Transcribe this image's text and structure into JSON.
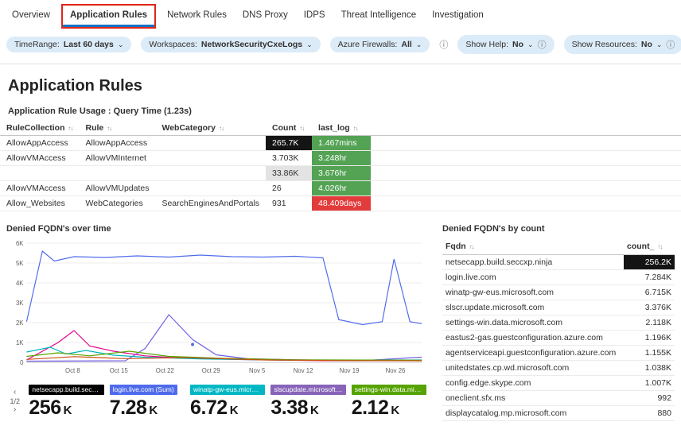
{
  "status_colors": {
    "green": "#54a254",
    "red": "#e23b3b",
    "dark": "#141414",
    "gray_chip": "#e3e3e3",
    "accent": "#1373c4",
    "annotation": "#e0261c"
  },
  "tabs": [
    {
      "label": "Overview",
      "selected": false
    },
    {
      "label": "Application Rules",
      "selected": true
    },
    {
      "label": "Network Rules",
      "selected": false
    },
    {
      "label": "DNS Proxy",
      "selected": false
    },
    {
      "label": "IDPS",
      "selected": false
    },
    {
      "label": "Threat Intelligence",
      "selected": false
    },
    {
      "label": "Investigation",
      "selected": false
    }
  ],
  "filters": {
    "time_range_label": "TimeRange:",
    "time_range_value": "Last 60 days",
    "workspaces_label": "Workspaces:",
    "workspaces_value": "NetworkSecurityCxeLogs",
    "azure_firewalls_label": "Azure Firewalls:",
    "azure_firewalls_value": "All",
    "show_help_label": "Show Help:",
    "show_help_value": "No",
    "show_resources_label": "Show Resources:",
    "show_resources_value": "No"
  },
  "page_title": "Application Rules",
  "usage": {
    "heading": "Application Rule Usage : Query Time (1.23s)",
    "columns": [
      "RuleCollection",
      "Rule",
      "WebCategory",
      "Count",
      "last_log"
    ],
    "rows": [
      {
        "rule_collection": "AllowAppAccess",
        "rule": "AllowAppAccess",
        "web_category": "",
        "count": "265.7K",
        "count_style": "dark",
        "last_log": "1.467mins",
        "last_log_style": "green"
      },
      {
        "rule_collection": "AllowVMAccess",
        "rule": "AllowVMInternet",
        "web_category": "",
        "count": "3.703K",
        "count_style": "plain",
        "last_log": "3.248hr",
        "last_log_style": "green"
      },
      {
        "rule_collection": "",
        "rule": "",
        "web_category": "",
        "count": "33.86K",
        "count_style": "gray",
        "last_log": "3.676hr",
        "last_log_style": "green"
      },
      {
        "rule_collection": "AllowVMAccess",
        "rule": "AllowVMUpdates",
        "web_category": "",
        "count": "26",
        "count_style": "plain",
        "last_log": "4.026hr",
        "last_log_style": "green"
      },
      {
        "rule_collection": "Allow_Websites",
        "rule": "WebCategories",
        "web_category": "SearchEnginesAndPortals",
        "count": "931",
        "count_style": "plain",
        "last_log": "48.409days",
        "last_log_style": "red"
      }
    ]
  },
  "denied_over_time_title": "Denied FQDN's over time",
  "chart_data": {
    "type": "line",
    "title": "Denied FQDN's over time",
    "ylim": [
      0,
      6000
    ],
    "y_ticks": [
      "6K",
      "5K",
      "4K",
      "3K",
      "2K",
      "1K",
      "0"
    ],
    "x_ticks": [
      "Oct 8",
      "Oct 15",
      "Oct 22",
      "Oct 29",
      "Nov 5",
      "Nov 12",
      "Nov 19",
      "Nov 26"
    ],
    "legend_position": "none",
    "grid": true,
    "point_marker": {
      "x": 0.42,
      "y": 900,
      "color": "#4f6bed"
    },
    "series": [
      {
        "name": "netsecapp.build.seccxp.ninja",
        "color": "#4f6bed",
        "points": [
          [
            0,
            2050
          ],
          [
            0.04,
            5600
          ],
          [
            0.07,
            5100
          ],
          [
            0.12,
            5320
          ],
          [
            0.2,
            5280
          ],
          [
            0.28,
            5360
          ],
          [
            0.36,
            5300
          ],
          [
            0.44,
            5400
          ],
          [
            0.52,
            5320
          ],
          [
            0.6,
            5300
          ],
          [
            0.68,
            5340
          ],
          [
            0.75,
            5260
          ],
          [
            0.79,
            2150
          ],
          [
            0.85,
            1900
          ],
          [
            0.9,
            2050
          ],
          [
            0.93,
            5200
          ],
          [
            0.97,
            2050
          ],
          [
            1,
            1950
          ]
        ]
      },
      {
        "name": "slscr.update.microsoft.com",
        "color": "#7160e8",
        "points": [
          [
            0,
            60
          ],
          [
            0.25,
            80
          ],
          [
            0.3,
            700
          ],
          [
            0.36,
            2400
          ],
          [
            0.42,
            1150
          ],
          [
            0.48,
            380
          ],
          [
            0.56,
            180
          ],
          [
            0.7,
            120
          ],
          [
            0.85,
            90
          ],
          [
            1,
            260
          ]
        ]
      },
      {
        "name": "login.live.com",
        "color": "#e3008c",
        "points": [
          [
            0,
            120
          ],
          [
            0.08,
            1000
          ],
          [
            0.12,
            1600
          ],
          [
            0.16,
            820
          ],
          [
            0.22,
            560
          ],
          [
            0.3,
            330
          ],
          [
            0.4,
            210
          ],
          [
            0.55,
            140
          ],
          [
            0.75,
            90
          ],
          [
            1,
            110
          ]
        ]
      },
      {
        "name": "winatp-gw-eus.microsoft.com",
        "color": "#00b7c3",
        "points": [
          [
            0,
            520
          ],
          [
            0.06,
            760
          ],
          [
            0.1,
            420
          ],
          [
            0.15,
            600
          ],
          [
            0.22,
            360
          ],
          [
            0.3,
            260
          ],
          [
            0.45,
            170
          ],
          [
            0.65,
            110
          ],
          [
            1,
            120
          ]
        ]
      },
      {
        "name": "settings-win.data.microsoft.com",
        "color": "#57a300",
        "points": [
          [
            0,
            300
          ],
          [
            0.08,
            480
          ],
          [
            0.16,
            330
          ],
          [
            0.26,
            560
          ],
          [
            0.36,
            300
          ],
          [
            0.5,
            200
          ],
          [
            0.68,
            130
          ],
          [
            1,
            110
          ]
        ]
      },
      {
        "name": "eastus2-gas.guestconfiguration.azure.com",
        "color": "#ca5010",
        "points": [
          [
            0,
            150
          ],
          [
            0.12,
            290
          ],
          [
            0.25,
            190
          ],
          [
            0.4,
            240
          ],
          [
            0.6,
            120
          ],
          [
            0.8,
            90
          ],
          [
            1,
            80
          ]
        ]
      }
    ]
  },
  "pager": {
    "label": "1/2",
    "prev": "‹",
    "next": "›"
  },
  "tiles": [
    {
      "label": "netsecapp.build.seccxp.ni...",
      "value": "256",
      "unit": "K",
      "color": "#000000"
    },
    {
      "label": "login.live.com (Sum)",
      "value": "7.28",
      "unit": "K",
      "color": "#4f6bed"
    },
    {
      "label": "winatp-gw-eus.microsoft...",
      "value": "6.72",
      "unit": "K",
      "color": "#00b7c3"
    },
    {
      "label": "slscupdate.microsoft.co...",
      "value": "3.38",
      "unit": "K",
      "color": "#8764b8"
    },
    {
      "label": "settings-win.data.micros...",
      "value": "2.12",
      "unit": "K",
      "color": "#57a300"
    }
  ],
  "denied_by_count": {
    "title": "Denied FQDN's by count",
    "columns": [
      "Fqdn",
      "count_"
    ],
    "rows": [
      {
        "fqdn": "netsecapp.build.seccxp.ninja",
        "count": "256.2K",
        "highlight": true
      },
      {
        "fqdn": "login.live.com",
        "count": "7.284K",
        "highlight": false
      },
      {
        "fqdn": "winatp-gw-eus.microsoft.com",
        "count": "6.715K",
        "highlight": false
      },
      {
        "fqdn": "slscr.update.microsoft.com",
        "count": "3.376K",
        "highlight": false
      },
      {
        "fqdn": "settings-win.data.microsoft.com",
        "count": "2.118K",
        "highlight": false
      },
      {
        "fqdn": "eastus2-gas.guestconfiguration.azure.com",
        "count": "1.196K",
        "highlight": false
      },
      {
        "fqdn": "agentserviceapi.guestconfiguration.azure.com",
        "count": "1.155K",
        "highlight": false
      },
      {
        "fqdn": "unitedstates.cp.wd.microsoft.com",
        "count": "1.038K",
        "highlight": false
      },
      {
        "fqdn": "config.edge.skype.com",
        "count": "1.007K",
        "highlight": false
      },
      {
        "fqdn": "oneclient.sfx.ms",
        "count": "992",
        "highlight": false
      },
      {
        "fqdn": "displaycatalog.mp.microsoft.com",
        "count": "880",
        "highlight": false
      }
    ]
  },
  "icons": {
    "caret": "⌄",
    "info": "ⓘ",
    "sort": "↑↓"
  }
}
